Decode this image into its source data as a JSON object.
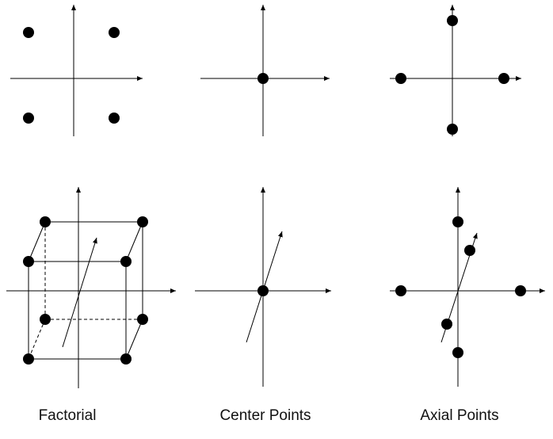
{
  "captions": {
    "factorial": "Factorial",
    "center": "Center Points",
    "axial": "Axial Points"
  },
  "colors": {
    "ink": "#000000",
    "point": "#000000"
  }
}
